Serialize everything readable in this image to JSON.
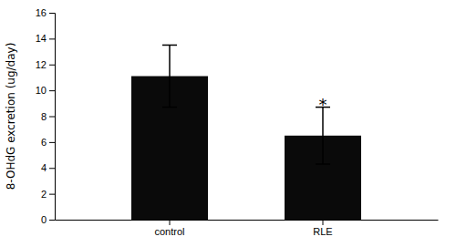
{
  "chart_data": {
    "type": "bar",
    "categories": [
      "control",
      "RLE"
    ],
    "values": [
      11.1,
      6.5
    ],
    "errors": [
      2.4,
      2.2
    ],
    "color": "#0a0a0a",
    "ylim": [
      0,
      16
    ],
    "yticks": [
      0,
      2,
      4,
      6,
      8,
      10,
      12,
      14,
      16
    ],
    "ylabel": "8-OHdG excretion (ug/day)",
    "annotations": [
      {
        "text": "*",
        "x": "RLE",
        "y": 9.0
      }
    ],
    "grid": false
  }
}
